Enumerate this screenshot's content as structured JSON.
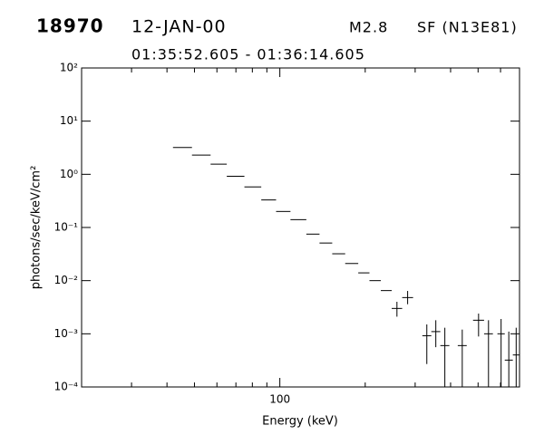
{
  "header": {
    "event": "18970",
    "date": "12-JAN-00",
    "class": "M2.8",
    "flare": "SF (N13E81)",
    "interval": "01:35:52.605 - 01:36:14.605"
  },
  "chart_data": {
    "type": "errorbar",
    "x_label": "Energy (keV)",
    "y_label": "photons/sec/keV/cm²",
    "xlog": true,
    "ylog": true,
    "color": "#000000",
    "xlim": [
      20,
      700
    ],
    "ylim": [
      0.0001,
      100
    ],
    "xticks": [
      {
        "value": 100,
        "label": "100"
      }
    ],
    "xminor_ticks": [
      30,
      40,
      50,
      60,
      70,
      80,
      90,
      200,
      300,
      400,
      500,
      600,
      700
    ],
    "yticks": [
      {
        "value": 0.0001,
        "label": "10⁻⁴"
      },
      {
        "value": 0.001,
        "label": "10⁻³"
      },
      {
        "value": 0.01,
        "label": "10⁻²"
      },
      {
        "value": 0.1,
        "label": "10⁻¹"
      },
      {
        "value": 1,
        "label": "10⁰"
      },
      {
        "value": 10,
        "label": "10¹"
      },
      {
        "value": 100,
        "label": "10²"
      }
    ],
    "x_low": [
      42,
      49,
      57,
      65,
      75,
      86,
      97,
      109,
      124,
      138,
      153,
      170,
      189,
      207,
      227,
      248,
      270,
      318,
      342,
      368,
      424,
      480,
      525,
      585,
      621,
      663
    ],
    "x_high": [
      49,
      57,
      65,
      75,
      86,
      97,
      109,
      124,
      138,
      153,
      170,
      189,
      207,
      227,
      248,
      270,
      295,
      342,
      368,
      396,
      456,
      525,
      564,
      621,
      663,
      700
    ],
    "values": [
      3.2,
      2.3,
      1.55,
      0.92,
      0.58,
      0.33,
      0.2,
      0.14,
      0.075,
      0.051,
      0.032,
      0.021,
      0.014,
      0.01,
      0.0065,
      0.003,
      0.0048,
      0.00092,
      0.0011,
      0.0006,
      0.0006,
      0.0018,
      0.001,
      0.001,
      0.00032,
      0.0004
    ],
    "err_high": [
      null,
      null,
      null,
      null,
      null,
      null,
      null,
      null,
      null,
      null,
      null,
      null,
      null,
      null,
      null,
      0.004,
      0.0064,
      0.0015,
      0.0018,
      0.0013,
      0.0012,
      0.0024,
      0.0018,
      0.0019,
      0.0011,
      0.0013
    ],
    "err_low": [
      null,
      null,
      null,
      null,
      null,
      null,
      null,
      null,
      null,
      null,
      null,
      null,
      null,
      null,
      null,
      0.0021,
      0.0036,
      0.00027,
      0.00056,
      0.0001,
      0.0001,
      0.00089,
      0.0001,
      0.0001,
      0.0001,
      0.0001
    ]
  }
}
